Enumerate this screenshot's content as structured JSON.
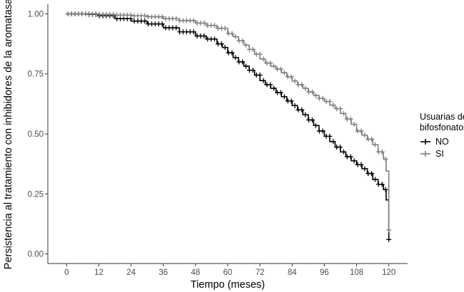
{
  "chart_data": {
    "type": "line",
    "xlabel": "Tiempo (meses)",
    "ylabel": "Persistencia al tratamiento con inhibidores de la aromatasa",
    "xlim": [
      -7,
      127
    ],
    "ylim": [
      -0.04,
      1.04
    ],
    "x_ticks": [
      0,
      12,
      24,
      36,
      48,
      60,
      72,
      84,
      96,
      108,
      120
    ],
    "y_ticks": [
      0.0,
      0.25,
      0.5,
      0.75,
      1.0
    ],
    "y_tick_labels": [
      "0.00",
      "0.25",
      "0.50",
      "0.75",
      "1.00"
    ],
    "grid": false,
    "legend": {
      "title_lines": [
        "Usuarias de",
        "bifosfonatos"
      ],
      "placement": "right"
    },
    "series": [
      {
        "name": "NO",
        "color": "#000000",
        "points": [
          [
            0,
            1.0
          ],
          [
            8,
            0.998
          ],
          [
            12,
            0.992
          ],
          [
            18,
            0.98
          ],
          [
            24,
            0.97
          ],
          [
            30,
            0.958
          ],
          [
            36,
            0.942
          ],
          [
            42,
            0.925
          ],
          [
            48,
            0.908
          ],
          [
            52,
            0.895
          ],
          [
            56,
            0.875
          ],
          [
            58,
            0.86
          ],
          [
            60,
            0.838
          ],
          [
            62,
            0.818
          ],
          [
            64,
            0.8
          ],
          [
            66,
            0.782
          ],
          [
            68,
            0.765
          ],
          [
            70,
            0.745
          ],
          [
            72,
            0.722
          ],
          [
            74,
            0.705
          ],
          [
            76,
            0.69
          ],
          [
            78,
            0.672
          ],
          [
            80,
            0.655
          ],
          [
            82,
            0.637
          ],
          [
            84,
            0.618
          ],
          [
            86,
            0.6
          ],
          [
            88,
            0.58
          ],
          [
            90,
            0.558
          ],
          [
            92,
            0.535
          ],
          [
            94,
            0.512
          ],
          [
            96,
            0.49
          ],
          [
            98,
            0.468
          ],
          [
            100,
            0.445
          ],
          [
            102,
            0.425
          ],
          [
            104,
            0.405
          ],
          [
            106,
            0.388
          ],
          [
            108,
            0.372
          ],
          [
            110,
            0.355
          ],
          [
            112,
            0.335
          ],
          [
            114,
            0.31
          ],
          [
            116,
            0.29
          ],
          [
            118,
            0.268
          ],
          [
            119,
            0.225
          ],
          [
            120,
            0.06
          ]
        ]
      },
      {
        "name": "SI",
        "color": "#7f7f7f",
        "points": [
          [
            0,
            1.0
          ],
          [
            12,
            0.998
          ],
          [
            18,
            0.995
          ],
          [
            24,
            0.992
          ],
          [
            30,
            0.988
          ],
          [
            36,
            0.98
          ],
          [
            42,
            0.972
          ],
          [
            48,
            0.962
          ],
          [
            52,
            0.952
          ],
          [
            56,
            0.94
          ],
          [
            60,
            0.918
          ],
          [
            62,
            0.905
          ],
          [
            64,
            0.888
          ],
          [
            66,
            0.87
          ],
          [
            68,
            0.852
          ],
          [
            70,
            0.832
          ],
          [
            72,
            0.812
          ],
          [
            74,
            0.795
          ],
          [
            76,
            0.782
          ],
          [
            78,
            0.77
          ],
          [
            80,
            0.755
          ],
          [
            82,
            0.738
          ],
          [
            84,
            0.72
          ],
          [
            86,
            0.705
          ],
          [
            88,
            0.69
          ],
          [
            90,
            0.675
          ],
          [
            92,
            0.66
          ],
          [
            94,
            0.648
          ],
          [
            96,
            0.635
          ],
          [
            98,
            0.62
          ],
          [
            100,
            0.605
          ],
          [
            102,
            0.585
          ],
          [
            104,
            0.562
          ],
          [
            106,
            0.54
          ],
          [
            108,
            0.512
          ],
          [
            110,
            0.495
          ],
          [
            112,
            0.478
          ],
          [
            114,
            0.455
          ],
          [
            116,
            0.425
          ],
          [
            118,
            0.395
          ],
          [
            119,
            0.345
          ],
          [
            120,
            0.1
          ]
        ]
      }
    ]
  }
}
